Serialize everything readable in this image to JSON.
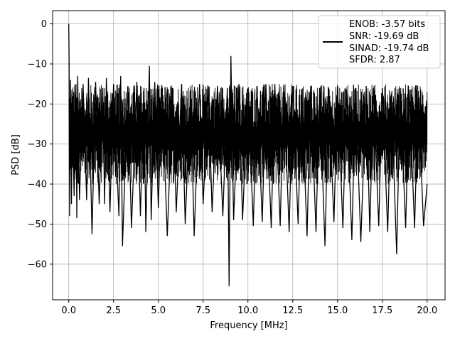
{
  "chart_data": {
    "type": "line",
    "title": "",
    "xlabel": "Frequency [MHz]",
    "ylabel": "PSD [dB]",
    "xlim": [
      -0.9,
      21.0
    ],
    "ylim": [
      -68.9,
      3.3
    ],
    "xticks": [
      0.0,
      2.5,
      5.0,
      7.5,
      10.0,
      12.5,
      15.0,
      17.5,
      20.0
    ],
    "xtick_labels": [
      "0.0",
      "2.5",
      "5.0",
      "7.5",
      "10.0",
      "12.5",
      "15.0",
      "17.5",
      "20.0"
    ],
    "yticks": [
      0,
      -10,
      -20,
      -30,
      -40,
      -50,
      -60
    ],
    "ytick_labels": [
      "0",
      "−10",
      "−20",
      "−30",
      "−40",
      "−50",
      "−60"
    ],
    "grid": true,
    "legend_position": "upper right",
    "legend_entries": [
      "ENOB: -3.57 bits",
      "SNR: -19.69 dB",
      "SINAD: -19.74 dB",
      "SFDR: 2.87"
    ],
    "series": [
      {
        "color": "#000000",
        "noise_floor_band_db": [
          -40,
          -15
        ],
        "x": [
          0.0,
          0.02,
          0.05,
          0.1,
          0.15,
          0.2,
          0.3,
          0.4,
          0.45,
          0.5,
          0.6,
          0.8,
          1.0,
          1.1,
          1.3,
          1.5,
          1.7,
          1.9,
          2.0,
          2.1,
          2.3,
          2.5,
          2.8,
          2.9,
          3.0,
          3.3,
          3.5,
          3.8,
          4.0,
          4.2,
          4.3,
          4.5,
          4.6,
          4.8,
          5.0,
          5.2,
          5.5,
          5.8,
          6.0,
          6.3,
          6.5,
          6.8,
          7.0,
          7.3,
          7.5,
          7.8,
          8.0,
          8.3,
          8.6,
          8.85,
          8.95,
          9.05,
          9.2,
          9.5,
          9.7,
          10.0,
          10.3,
          10.5,
          10.8,
          11.0,
          11.3,
          11.5,
          11.8,
          12.0,
          12.3,
          12.5,
          12.8,
          13.0,
          13.3,
          13.5,
          13.8,
          14.0,
          14.3,
          14.5,
          14.8,
          15.0,
          15.3,
          15.5,
          15.8,
          16.0,
          16.3,
          16.6,
          16.8,
          17.0,
          17.3,
          17.5,
          17.8,
          18.0,
          18.3,
          18.5,
          18.8,
          19.0,
          19.3,
          19.5,
          19.8,
          20.0
        ],
        "y": [
          0.0,
          -8.5,
          -48.0,
          -14.0,
          -45.0,
          -21.0,
          -43.0,
          -15.0,
          -48.5,
          -13.0,
          -44.0,
          -15.0,
          -44.0,
          -13.5,
          -52.5,
          -14.5,
          -45.0,
          -16.0,
          -45.0,
          -13.5,
          -47.0,
          -15.0,
          -48.0,
          -13.0,
          -55.5,
          -15.5,
          -51.0,
          -14.5,
          -48.0,
          -16.0,
          -52.0,
          -10.5,
          -49.0,
          -14.5,
          -46.0,
          -15.5,
          -53.0,
          -16.0,
          -47.0,
          -15.0,
          -50.0,
          -16.5,
          -53.0,
          -15.0,
          -45.0,
          -16.0,
          -47.0,
          -15.5,
          -48.0,
          -16.0,
          -65.5,
          -8.0,
          -49.0,
          -15.0,
          -49.0,
          -16.0,
          -50.5,
          -15.5,
          -49.5,
          -15.0,
          -51.0,
          -15.0,
          -50.5,
          -15.5,
          -52.0,
          -15.5,
          -50.0,
          -16.5,
          -53.0,
          -15.5,
          -52.0,
          -16.0,
          -55.5,
          -16.0,
          -49.5,
          -15.5,
          -51.0,
          -16.5,
          -54.0,
          -16.0,
          -54.5,
          -15.5,
          -52.0,
          -16.0,
          -50.5,
          -16.0,
          -52.0,
          -17.5,
          -57.5,
          -16.0,
          -51.0,
          -16.5,
          -51.0,
          -17.0,
          -50.5,
          -40.0
        ]
      }
    ]
  }
}
